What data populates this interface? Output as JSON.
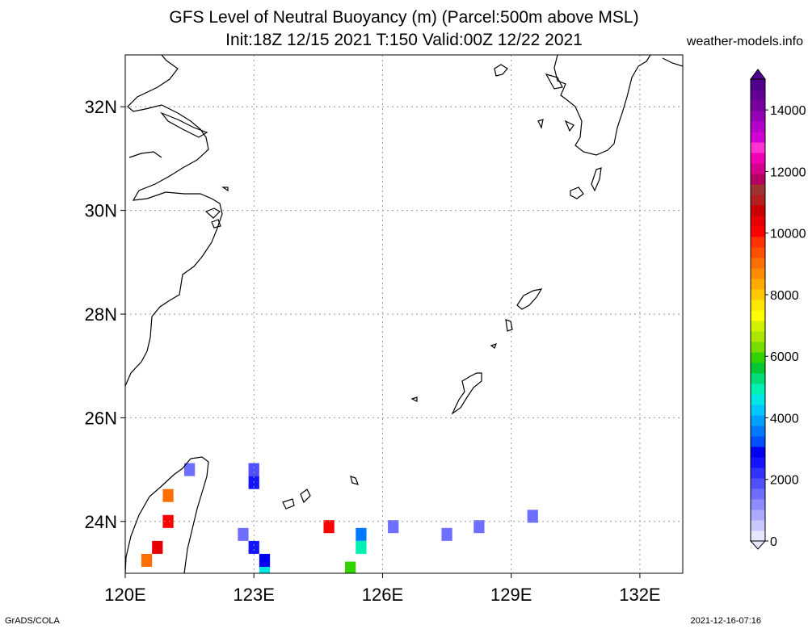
{
  "title": {
    "line1": "GFS Level of Neutral Buoyancy (m) (Parcel:500m above MSL)",
    "line2": "Init:18Z 12/15 2021 T:150 Valid:00Z 12/22 2021"
  },
  "site": "weather-models.info",
  "footer": {
    "left": "GrADS/COLA",
    "right": "2021-12-16-07:16"
  },
  "map": {
    "lon_range": [
      120,
      133
    ],
    "lat_range": [
      23,
      33
    ],
    "lon_ticks": [
      {
        "value": 120,
        "label": "120E"
      },
      {
        "value": 123,
        "label": "123E"
      },
      {
        "value": 126,
        "label": "126E"
      },
      {
        "value": 129,
        "label": "129E"
      },
      {
        "value": 132,
        "label": "132E"
      }
    ],
    "lat_ticks": [
      {
        "value": 24,
        "label": "24N"
      },
      {
        "value": 26,
        "label": "26N"
      },
      {
        "value": 28,
        "label": "28N"
      },
      {
        "value": 30,
        "label": "30N"
      },
      {
        "value": 32,
        "label": "32N"
      }
    ],
    "grid": true,
    "grid_style": "dotted"
  },
  "colorbar": {
    "min": 0,
    "max": 15000,
    "labels": [
      {
        "value": 0,
        "label": "0"
      },
      {
        "value": 2000,
        "label": "2000"
      },
      {
        "value": 4000,
        "label": "4000"
      },
      {
        "value": 6000,
        "label": "6000"
      },
      {
        "value": 8000,
        "label": "8000"
      },
      {
        "value": 10000,
        "label": "10000"
      },
      {
        "value": 12000,
        "label": "12000"
      },
      {
        "value": 14000,
        "label": "14000"
      }
    ],
    "colors": [
      "#e6e6ff",
      "#c8c8ff",
      "#aaaaff",
      "#8c8cff",
      "#6e6eff",
      "#5050ff",
      "#3232ff",
      "#1414ff",
      "#0000f0",
      "#0050ff",
      "#0078ff",
      "#00a0ff",
      "#00c8ff",
      "#00e6e6",
      "#00f0b4",
      "#00dc78",
      "#00c832",
      "#32d200",
      "#78dc00",
      "#aae600",
      "#d2f000",
      "#ffff00",
      "#ffe600",
      "#ffc800",
      "#ffaa00",
      "#ff8c00",
      "#ff6e00",
      "#ff5000",
      "#ff3200",
      "#ff0000",
      "#e60000",
      "#c80000",
      "#b41e1e",
      "#a03232",
      "#b40064",
      "#d2008c",
      "#f000b4",
      "#ff32d2",
      "#d200d2",
      "#b400c8",
      "#9600b4",
      "#7800a0",
      "#640096",
      "#50008c"
    ]
  },
  "data_cells": [
    {
      "lon": 121.5,
      "lat": 25.0,
      "value": 1500
    },
    {
      "lon": 121.0,
      "lat": 24.5,
      "value": 9000
    },
    {
      "lon": 121.0,
      "lat": 24.0,
      "value": 10000
    },
    {
      "lon": 120.75,
      "lat": 23.5,
      "value": 10500
    },
    {
      "lon": 120.5,
      "lat": 23.25,
      "value": 9000
    },
    {
      "lon": 123.0,
      "lat": 25.0,
      "value": 2000
    },
    {
      "lon": 123.0,
      "lat": 24.75,
      "value": 2500
    },
    {
      "lon": 122.75,
      "lat": 23.75,
      "value": 1500
    },
    {
      "lon": 123.0,
      "lat": 23.5,
      "value": 2500
    },
    {
      "lon": 123.25,
      "lat": 23.25,
      "value": 3000
    },
    {
      "lon": 123.25,
      "lat": 23.0,
      "value": 4500
    },
    {
      "lon": 124.75,
      "lat": 23.9,
      "value": 10000
    },
    {
      "lon": 125.5,
      "lat": 23.75,
      "value": 3500
    },
    {
      "lon": 125.5,
      "lat": 23.5,
      "value": 5000
    },
    {
      "lon": 125.25,
      "lat": 23.1,
      "value": 6000
    },
    {
      "lon": 126.25,
      "lat": 23.9,
      "value": 1500
    },
    {
      "lon": 127.5,
      "lat": 23.75,
      "value": 1500
    },
    {
      "lon": 128.25,
      "lat": 23.9,
      "value": 1500
    },
    {
      "lon": 129.5,
      "lat": 24.1,
      "value": 1500
    }
  ]
}
